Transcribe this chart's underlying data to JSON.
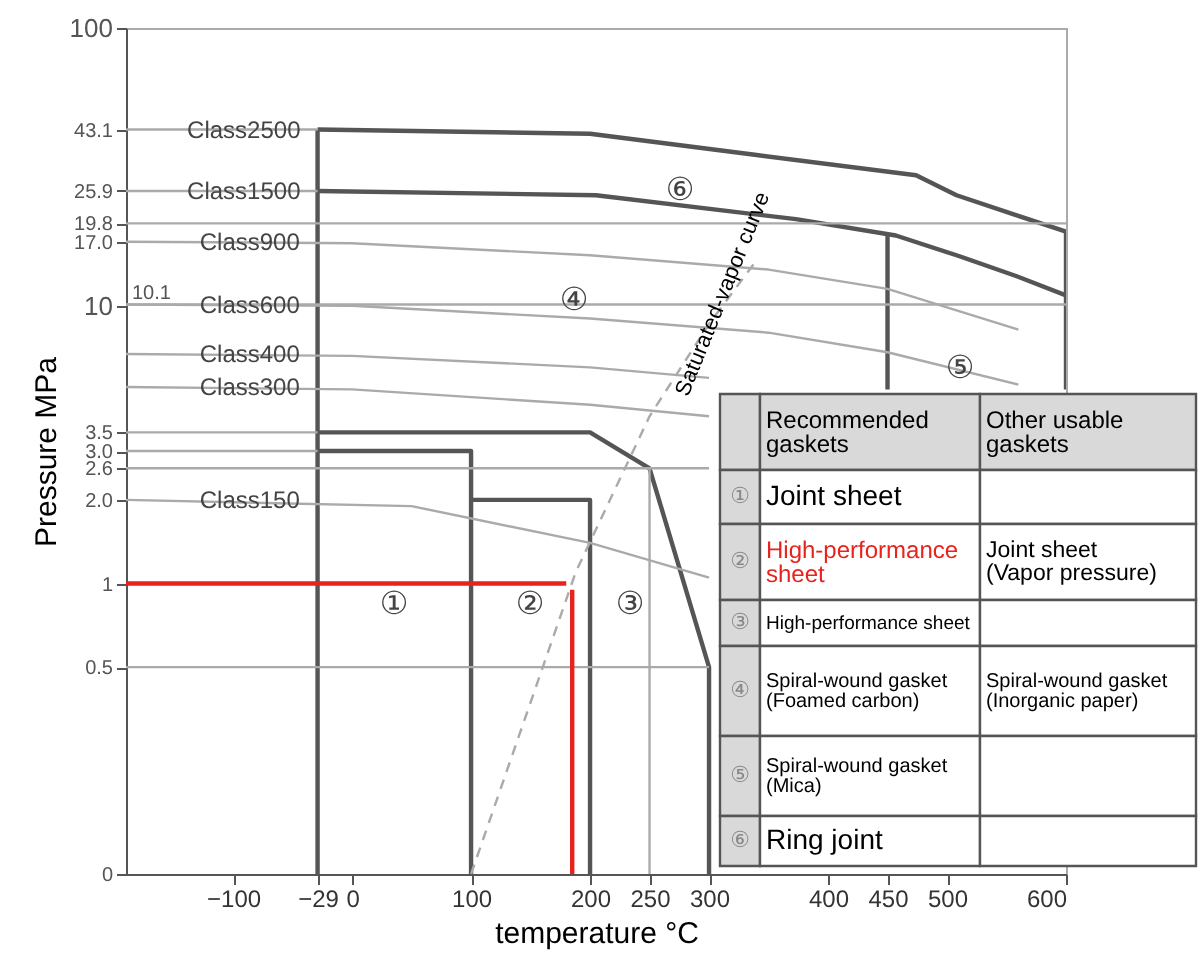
{
  "chart_data": {
    "type": "line",
    "xlabel": "temperature °C",
    "ylabel": "Pressure  MPa",
    "xlim": [
      -190,
      600
    ],
    "ylim": [
      0.09,
      100
    ],
    "log": true,
    "grid": false,
    "marker": "none",
    "xticks": [
      -100,
      -29,
      0,
      100,
      200,
      250,
      300,
      400,
      450,
      500,
      600
    ],
    "yticks": [
      {
        "value": 0.09,
        "label": "0"
      },
      0.5,
      1,
      {
        "value": 2,
        "label": "2.0"
      },
      2.6,
      {
        "value": 3,
        "label": "3.0"
      },
      3.5,
      10,
      {
        "value": 17,
        "label": "17.0"
      },
      19.8,
      25.9,
      43.1,
      100
    ],
    "ref_lines": [
      {
        "axis": "y",
        "value": 10.1,
        "label": "10.1",
        "color": "#aaaaaa"
      }
    ],
    "series": [
      {
        "color": "#555555",
        "x": [
          -29,
          -29
        ],
        "values": [
          0.09,
          43.1
        ]
      },
      {
        "color": "#555555",
        "x": [
          -29,
          100,
          100
        ],
        "values": [
          3.0,
          3.0,
          0.09
        ]
      },
      {
        "color": "#555555",
        "x": [
          100,
          200,
          200
        ],
        "values": [
          2.0,
          2.0,
          0.09
        ]
      },
      {
        "color": "#555555",
        "x": [
          -29,
          200,
          250,
          300,
          300
        ],
        "values": [
          3.5,
          3.5,
          2.6,
          0.5,
          0.09
        ]
      },
      {
        "color": "#555555",
        "x": [
          -29,
          200,
          340,
          474,
          508,
          558,
          600
        ],
        "values": [
          43.1,
          41.6,
          34.9,
          29.5,
          25.0,
          21.2,
          18.5
        ]
      },
      {
        "color": "#555555",
        "x": [
          -29,
          205,
          373,
          457,
          508,
          558,
          600
        ],
        "values": [
          25.9,
          25.0,
          20.5,
          17.9,
          15.2,
          12.8,
          10.9
        ]
      },
      {
        "color": "#555555",
        "x": [
          450,
          450
        ],
        "values": [
          18.0,
          5.0
        ]
      },
      {
        "color": "#555555",
        "x": [
          600,
          600
        ],
        "values": [
          18.5,
          5.0
        ]
      },
      {
        "color": "#aaaaaa",
        "x": [
          -190,
          -29
        ],
        "values": [
          43.1,
          43.1
        ]
      },
      {
        "color": "#aaaaaa",
        "x": [
          -190,
          -29
        ],
        "values": [
          25.9,
          25.9
        ]
      },
      {
        "color": "#aaaaaa",
        "x": [
          -190,
          600
        ],
        "values": [
          19.8,
          19.8
        ]
      },
      {
        "color": "#aaaaaa",
        "x": [
          -190,
          0,
          200,
          350,
          450,
          560
        ],
        "values": [
          17.0,
          16.8,
          15.2,
          13.5,
          11.5,
          8.2
        ]
      },
      {
        "color": "#aaaaaa",
        "x": [
          -190,
          0,
          200,
          350,
          450,
          560
        ],
        "values": [
          10.1,
          10.0,
          9.0,
          8.0,
          6.8,
          5.2
        ]
      },
      {
        "color": "#aaaaaa",
        "x": [
          -190,
          0,
          200,
          300
        ],
        "values": [
          6.7,
          6.6,
          6.0,
          5.5
        ]
      },
      {
        "color": "#aaaaaa",
        "x": [
          -190,
          0,
          200,
          300
        ],
        "values": [
          5.1,
          5.0,
          4.4,
          4.0
        ]
      },
      {
        "color": "#aaaaaa",
        "x": [
          -190,
          -29
        ],
        "values": [
          3.5,
          3.5
        ]
      },
      {
        "color": "#aaaaaa",
        "x": [
          -190,
          -29
        ],
        "values": [
          3.0,
          3.0
        ]
      },
      {
        "color": "#aaaaaa",
        "x": [
          -190,
          300
        ],
        "values": [
          2.6,
          2.6
        ]
      },
      {
        "color": "#aaaaaa",
        "x": [
          -190,
          50,
          200,
          300
        ],
        "values": [
          2.0,
          1.9,
          1.4,
          1.05
        ]
      },
      {
        "color": "#aaaaaa",
        "x": [
          -190,
          300
        ],
        "values": [
          0.5,
          0.5
        ]
      },
      {
        "color": "#aaaaaa",
        "x": [
          250,
          250
        ],
        "values": [
          0.09,
          2.6
        ]
      },
      {
        "color": "#aaaaaa",
        "line_style": "dashed",
        "x": [
          100,
          188,
          250,
          300,
          340
        ],
        "values": [
          0.09,
          1.1,
          4.0,
          8.6,
          14.6
        ]
      },
      {
        "color": "#e8221c",
        "x": [
          -190,
          180
        ],
        "values": [
          1.0,
          1.0
        ]
      },
      {
        "color": "#e8221c",
        "x": [
          185,
          185
        ],
        "values": [
          0.09,
          0.95
        ]
      }
    ],
    "annotations": [
      {
        "text": "Class2500",
        "x": -91,
        "y": 43.1
      },
      {
        "text": "Class1500",
        "x": -91,
        "y": 25.9
      },
      {
        "text": "Class900",
        "x": -86,
        "y": 17.0
      },
      {
        "text": "Class600",
        "x": -86,
        "y": 10.1
      },
      {
        "text": "Class400",
        "x": -86,
        "y": 6.7
      },
      {
        "text": "Class300",
        "x": -86,
        "y": 5.1
      },
      {
        "text": "Class150",
        "x": -86,
        "y": 2.0
      },
      {
        "text": "Saturated-vapor curve",
        "x": 312,
        "y": 11
      },
      "①",
      "②",
      "③",
      "④",
      "⑤",
      "⑥",
      "Recommended gaskets",
      "Other usable gaskets",
      "①",
      "Joint sheet",
      "②",
      "High-performance sheet",
      "Joint sheet (Vapor pressure)",
      "③",
      "High-performance sheet",
      "④",
      "Spiral-wound gasket (Foamed carbon)",
      "Spiral-wound gasket (Inorganic paper)",
      "⑤",
      "Spiral-wound gasket (Mica)",
      "⑥",
      "Ring joint"
    ]
  }
}
